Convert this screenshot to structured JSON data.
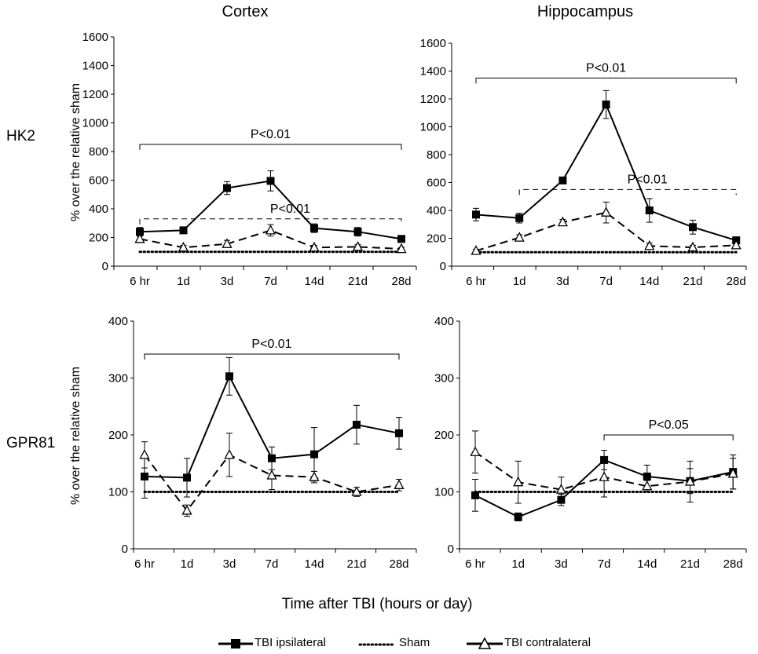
{
  "figure": {
    "column_titles": [
      "Cortex",
      "Hippocampus"
    ],
    "row_labels": [
      "HK2",
      "GPR81"
    ],
    "xlabel": "Time after TBI (hours or day)",
    "ylabel": "% over the relative sham",
    "legend": [
      {
        "label": "TBI ipsilateral",
        "style": "solid",
        "marker": "square-filled"
      },
      {
        "label": "Sham",
        "style": "dotted",
        "marker": "none"
      },
      {
        "label": "TBI contralateral",
        "style": "solid",
        "marker": "triangle-open"
      }
    ],
    "colors": {
      "ink": "#000000",
      "background": "#ffffff"
    }
  },
  "chart_data": [
    {
      "type": "line",
      "panel": "Cortex HK2",
      "title": "",
      "xlabel": "",
      "ylabel": "% over the relative sham",
      "categories": [
        "6 hr",
        "1d",
        "3d",
        "7d",
        "14d",
        "21d",
        "28d"
      ],
      "ylim": [
        0,
        1600
      ],
      "yticks": [
        "0",
        "200",
        "400",
        "600",
        "800",
        "1000",
        "1200",
        "1400",
        "1600"
      ],
      "series": [
        {
          "name": "TBI ipsilateral",
          "values": [
            240,
            250,
            545,
            595,
            265,
            240,
            190
          ],
          "errors": [
            30,
            20,
            45,
            70,
            30,
            30,
            15
          ]
        },
        {
          "name": "Sham",
          "values": [
            100,
            100,
            100,
            100,
            100,
            100,
            100
          ],
          "errors": [
            0,
            0,
            0,
            0,
            0,
            0,
            0
          ]
        },
        {
          "name": "TBI contralateral",
          "values": [
            190,
            130,
            155,
            250,
            130,
            135,
            120
          ],
          "errors": [
            20,
            15,
            25,
            40,
            15,
            15,
            10
          ]
        }
      ],
      "annotations": [
        {
          "text": "P<0.01",
          "style": "solid",
          "from": "6 hr",
          "to": "28d",
          "level": 850
        },
        {
          "text": "P<0.01",
          "style": "dashed",
          "from": "6 hr",
          "to": "28d",
          "level": 330
        }
      ]
    },
    {
      "type": "line",
      "panel": "Hippocampus HK2",
      "title": "",
      "xlabel": "",
      "ylabel": "",
      "categories": [
        "6 hr",
        "1d",
        "3d",
        "7d",
        "14d",
        "21d",
        "28d"
      ],
      "ylim": [
        0,
        1600
      ],
      "yticks": [
        "0",
        "200",
        "400",
        "600",
        "800",
        "1000",
        "1200",
        "1400",
        "1600"
      ],
      "series": [
        {
          "name": "TBI ipsilateral",
          "values": [
            370,
            345,
            615,
            1160,
            400,
            280,
            185
          ],
          "errors": [
            45,
            35,
            20,
            100,
            85,
            50,
            25
          ]
        },
        {
          "name": "Sham",
          "values": [
            100,
            100,
            100,
            100,
            100,
            100,
            100
          ],
          "errors": [
            0,
            0,
            0,
            0,
            0,
            0,
            0
          ]
        },
        {
          "name": "TBI contralateral",
          "values": [
            110,
            205,
            315,
            385,
            145,
            135,
            150
          ],
          "errors": [
            10,
            20,
            20,
            75,
            20,
            15,
            20
          ]
        }
      ],
      "annotations": [
        {
          "text": "P<0.01",
          "style": "solid",
          "from": "6 hr",
          "to": "28d",
          "level": 1350
        },
        {
          "text": "P<0.01",
          "style": "dashed",
          "from": "1d",
          "to": "28d",
          "level": 550
        }
      ]
    },
    {
      "type": "line",
      "panel": "Cortex GPR81",
      "title": "",
      "xlabel": "",
      "ylabel": "% over the relative sham",
      "categories": [
        "6 hr",
        "1d",
        "3d",
        "7d",
        "14d",
        "21d",
        "28d"
      ],
      "ylim": [
        0,
        400
      ],
      "yticks": [
        "0",
        "100",
        "200",
        "300",
        "400"
      ],
      "series": [
        {
          "name": "TBI ipsilateral",
          "values": [
            127,
            125,
            303,
            159,
            166,
            218,
            203
          ],
          "errors": [
            38,
            34,
            33,
            20,
            47,
            34,
            28
          ]
        },
        {
          "name": "Sham",
          "values": [
            100,
            100,
            100,
            100,
            100,
            100,
            100
          ],
          "errors": [
            0,
            0,
            0,
            0,
            0,
            0,
            0
          ]
        },
        {
          "name": "TBI contralateral",
          "values": [
            165,
            67,
            165,
            129,
            126,
            100,
            112
          ],
          "errors": [
            23,
            10,
            38,
            25,
            10,
            8,
            10
          ]
        }
      ],
      "annotations": [
        {
          "text": "P<0.01",
          "style": "solid",
          "from": "6 hr",
          "to": "28d",
          "level": 342
        }
      ]
    },
    {
      "type": "line",
      "panel": "Hippocampus GPR81",
      "title": "",
      "xlabel": "",
      "ylabel": "",
      "categories": [
        "6 hr",
        "1d",
        "3d",
        "7d",
        "14d",
        "21d",
        "28d"
      ],
      "ylim": [
        0,
        400
      ],
      "yticks": [
        "0",
        "100",
        "200",
        "300",
        "400"
      ],
      "series": [
        {
          "name": "TBI ipsilateral",
          "values": [
            94,
            56,
            86,
            156,
            127,
            119,
            135
          ],
          "errors": [
            28,
            7,
            10,
            17,
            20,
            22,
            30
          ]
        },
        {
          "name": "Sham",
          "values": [
            100,
            100,
            100,
            100,
            100,
            100,
            100
          ],
          "errors": [
            0,
            0,
            0,
            0,
            0,
            0,
            0
          ]
        },
        {
          "name": "TBI contralateral",
          "values": [
            170,
            117,
            104,
            126,
            110,
            118,
            132
          ],
          "errors": [
            37,
            37,
            22,
            35,
            10,
            36,
            27
          ]
        }
      ],
      "annotations": [
        {
          "text": "P<0.05",
          "style": "solid",
          "from": "7d",
          "to": "28d",
          "level": 200
        }
      ]
    }
  ]
}
